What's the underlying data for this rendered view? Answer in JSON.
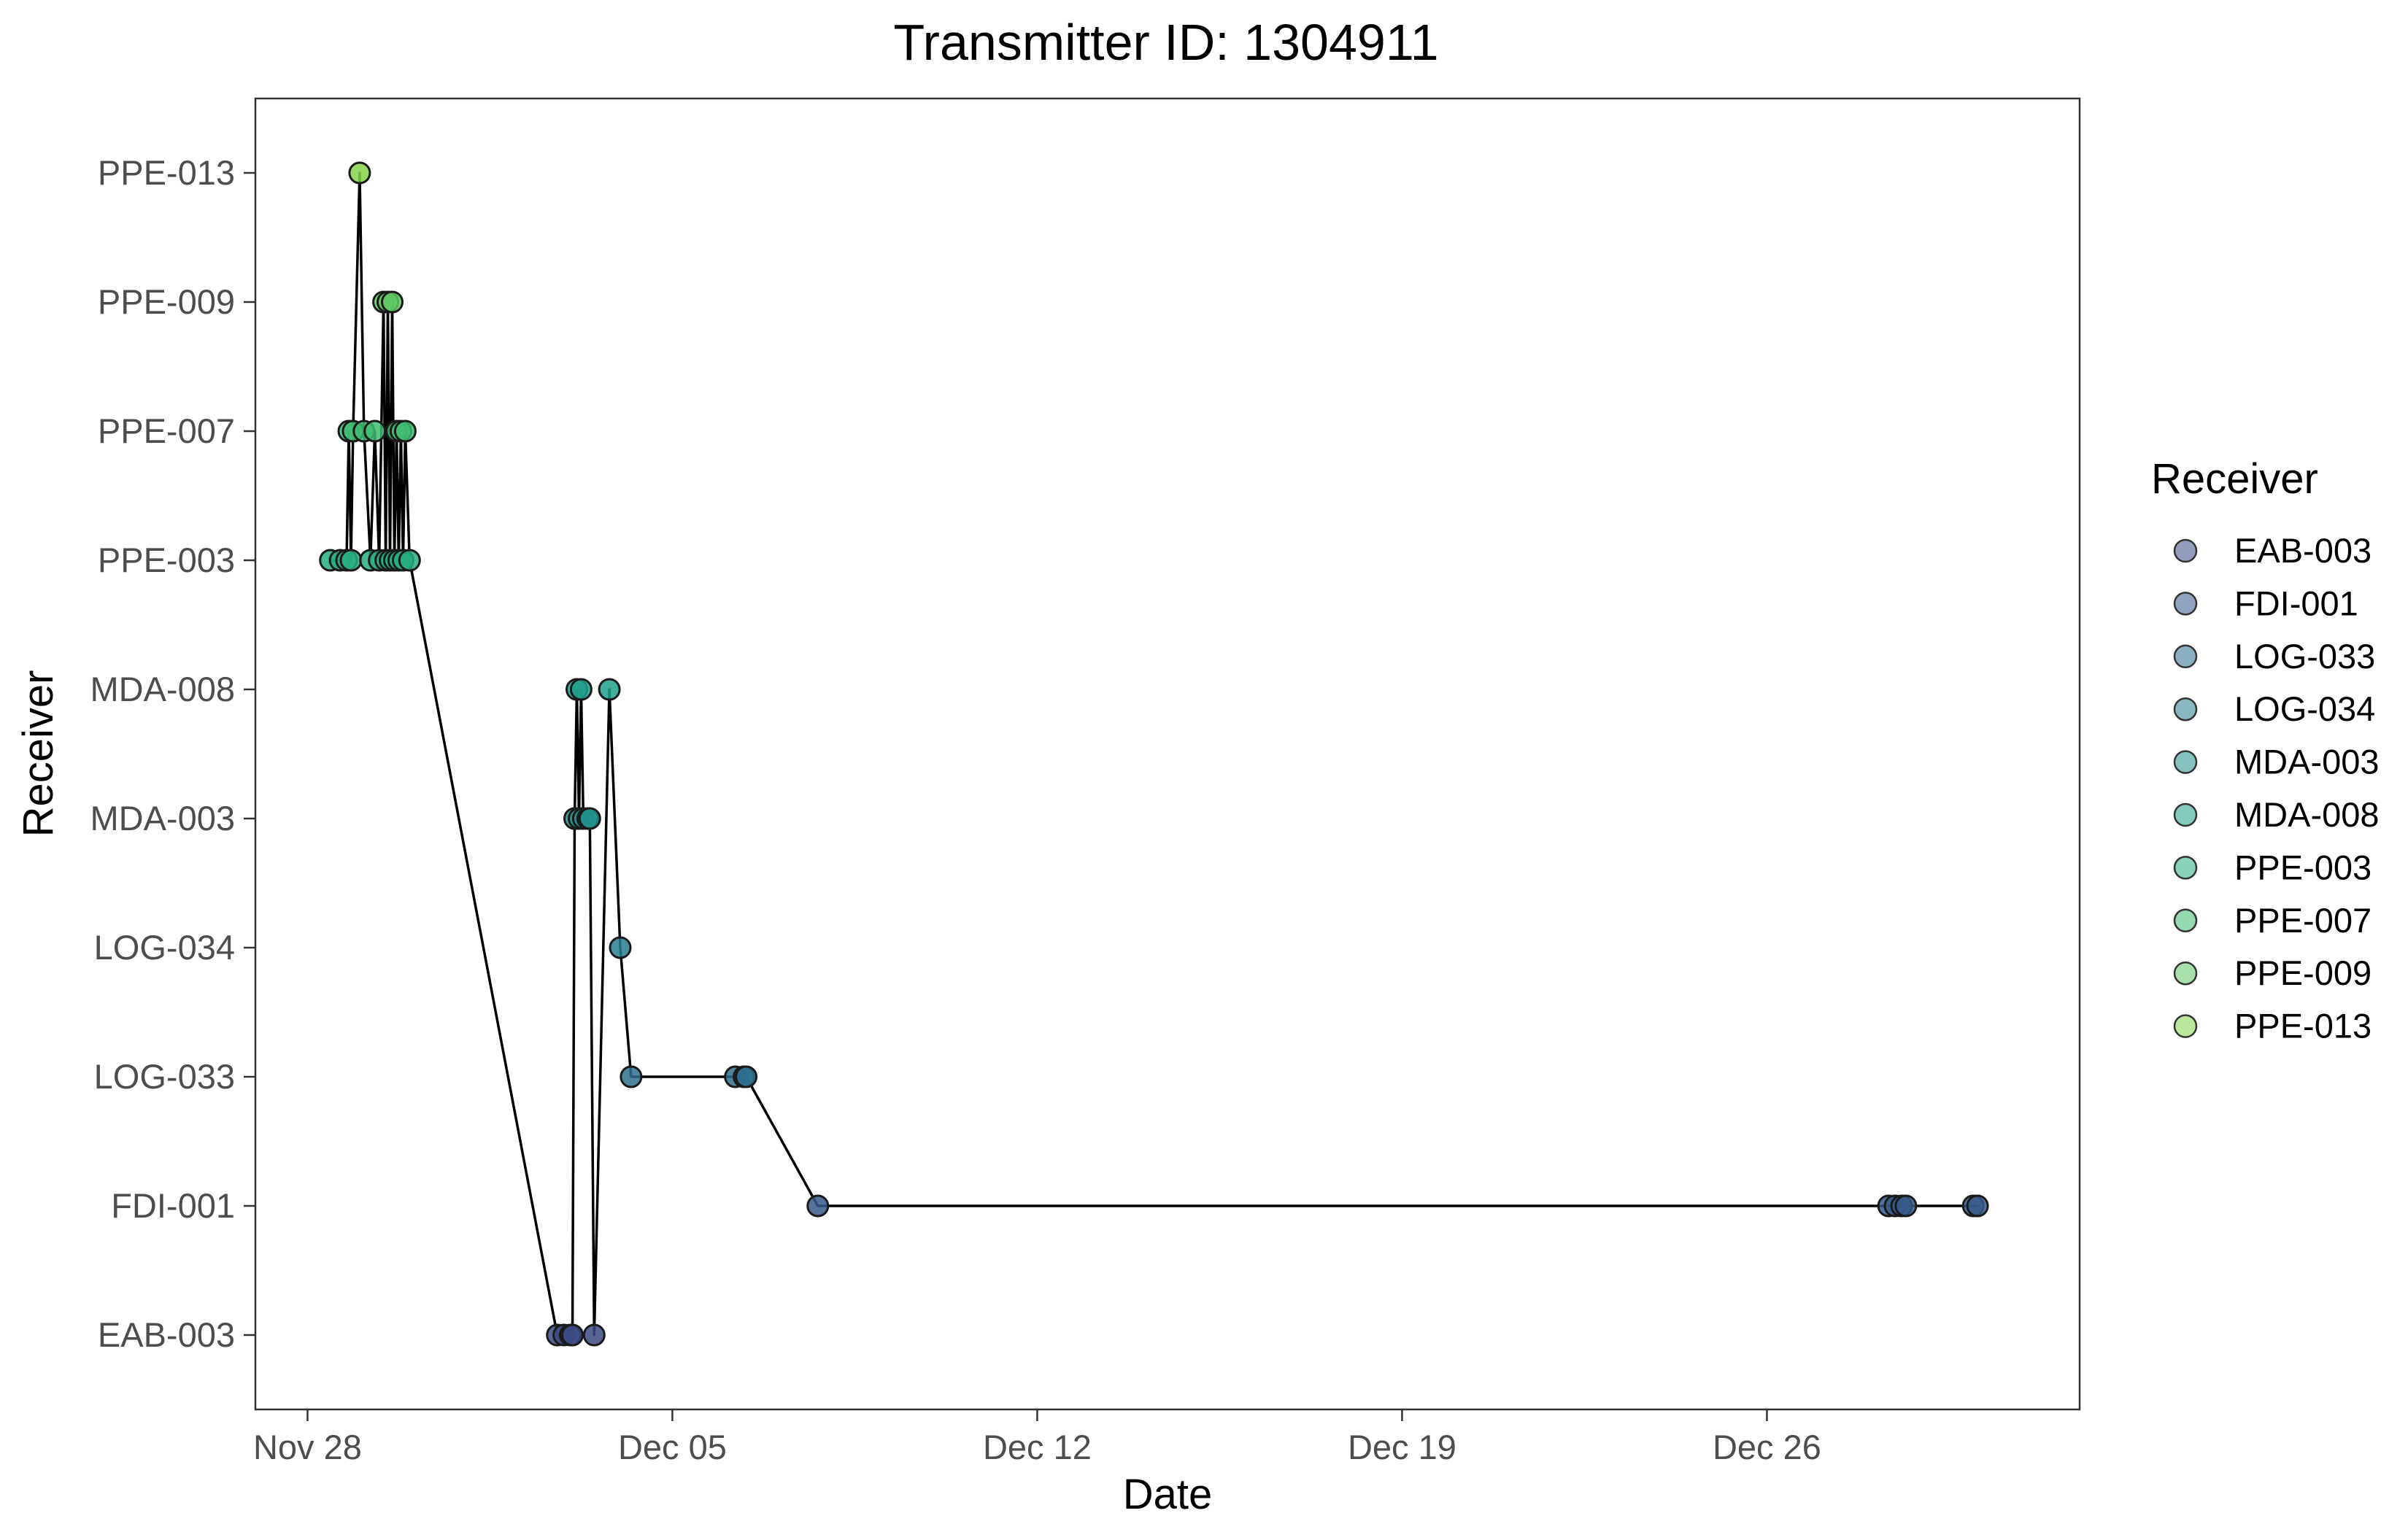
{
  "chart_data": {
    "type": "line",
    "title": "Transmitter ID: 1304911",
    "xlabel": "Date",
    "ylabel": "Receiver",
    "x_axis": {
      "scale": "date",
      "range": [
        "2024-11-27T00:00",
        "2025-01-01T00:00"
      ],
      "ticks": [
        {
          "date": "2024-11-28T00:00",
          "label": "Nov 28"
        },
        {
          "date": "2024-12-05T00:00",
          "label": "Dec 05"
        },
        {
          "date": "2024-12-12T00:00",
          "label": "Dec 12"
        },
        {
          "date": "2024-12-19T00:00",
          "label": "Dec 19"
        },
        {
          "date": "2024-12-26T00:00",
          "label": "Dec 26"
        }
      ]
    },
    "categories": [
      "EAB-003",
      "FDI-001",
      "LOG-033",
      "LOG-034",
      "MDA-003",
      "MDA-008",
      "PPE-003",
      "PPE-007",
      "PPE-009",
      "PPE-013"
    ],
    "legend": {
      "title": "Receiver",
      "placement": "right",
      "items": [
        {
          "label": "EAB-003",
          "color": "#3d4a85"
        },
        {
          "label": "FDI-001",
          "color": "#36598a"
        },
        {
          "label": "LOG-033",
          "color": "#2e6f8e"
        },
        {
          "label": "LOG-034",
          "color": "#277f8e"
        },
        {
          "label": "MDA-003",
          "color": "#21918c"
        },
        {
          "label": "MDA-008",
          "color": "#1fa088"
        },
        {
          "label": "PPE-003",
          "color": "#28ae80"
        },
        {
          "label": "PPE-007",
          "color": "#3fbc73"
        },
        {
          "label": "PPE-009",
          "color": "#5ec962"
        },
        {
          "label": "PPE-013",
          "color": "#84d44b"
        }
      ]
    },
    "points": [
      {
        "t": "2024-11-28T10:30",
        "receiver": "PPE-003"
      },
      {
        "t": "2024-11-28T15:00",
        "receiver": "PPE-003"
      },
      {
        "t": "2024-11-28T18:00",
        "receiver": "PPE-003"
      },
      {
        "t": "2024-11-28T19:00",
        "receiver": "PPE-007"
      },
      {
        "t": "2024-11-28T20:00",
        "receiver": "PPE-003"
      },
      {
        "t": "2024-11-28T21:00",
        "receiver": "PPE-007"
      },
      {
        "t": "2024-11-29T00:00",
        "receiver": "PPE-013"
      },
      {
        "t": "2024-11-29T02:00",
        "receiver": "PPE-007"
      },
      {
        "t": "2024-11-29T05:00",
        "receiver": "PPE-003"
      },
      {
        "t": "2024-11-29T07:00",
        "receiver": "PPE-007"
      },
      {
        "t": "2024-11-29T09:00",
        "receiver": "PPE-003"
      },
      {
        "t": "2024-11-29T11:00",
        "receiver": "PPE-009"
      },
      {
        "t": "2024-11-29T12:00",
        "receiver": "PPE-003"
      },
      {
        "t": "2024-11-29T13:00",
        "receiver": "PPE-009"
      },
      {
        "t": "2024-11-29T14:00",
        "receiver": "PPE-003"
      },
      {
        "t": "2024-11-29T15:00",
        "receiver": "PPE-009"
      },
      {
        "t": "2024-11-29T16:00",
        "receiver": "PPE-003"
      },
      {
        "t": "2024-11-29T17:00",
        "receiver": "PPE-007"
      },
      {
        "t": "2024-11-29T18:00",
        "receiver": "PPE-003"
      },
      {
        "t": "2024-11-29T19:00",
        "receiver": "PPE-007"
      },
      {
        "t": "2024-11-29T20:00",
        "receiver": "PPE-003"
      },
      {
        "t": "2024-11-29T21:00",
        "receiver": "PPE-007"
      },
      {
        "t": "2024-11-29T23:00",
        "receiver": "PPE-003"
      },
      {
        "t": "2024-12-02T19:00",
        "receiver": "EAB-003"
      },
      {
        "t": "2024-12-02T22:00",
        "receiver": "EAB-003"
      },
      {
        "t": "2024-12-03T01:00",
        "receiver": "EAB-003"
      },
      {
        "t": "2024-12-03T02:00",
        "receiver": "EAB-003"
      },
      {
        "t": "2024-12-03T03:00",
        "receiver": "MDA-003"
      },
      {
        "t": "2024-12-03T04:00",
        "receiver": "MDA-008"
      },
      {
        "t": "2024-12-03T05:00",
        "receiver": "MDA-003"
      },
      {
        "t": "2024-12-03T06:00",
        "receiver": "MDA-008"
      },
      {
        "t": "2024-12-03T07:00",
        "receiver": "MDA-003"
      },
      {
        "t": "2024-12-03T09:00",
        "receiver": "MDA-003"
      },
      {
        "t": "2024-12-03T10:00",
        "receiver": "MDA-003"
      },
      {
        "t": "2024-12-03T12:00",
        "receiver": "EAB-003"
      },
      {
        "t": "2024-12-03T19:00",
        "receiver": "MDA-008"
      },
      {
        "t": "2024-12-04T00:00",
        "receiver": "LOG-034"
      },
      {
        "t": "2024-12-04T05:00",
        "receiver": "LOG-033"
      },
      {
        "t": "2024-12-06T05:00",
        "receiver": "LOG-033"
      },
      {
        "t": "2024-12-06T09:00",
        "receiver": "LOG-033"
      },
      {
        "t": "2024-12-06T10:00",
        "receiver": "LOG-033"
      },
      {
        "t": "2024-12-07T19:00",
        "receiver": "FDI-001"
      },
      {
        "t": "2024-12-28T08:00",
        "receiver": "FDI-001"
      },
      {
        "t": "2024-12-28T11:00",
        "receiver": "FDI-001"
      },
      {
        "t": "2024-12-28T14:00",
        "receiver": "FDI-001"
      },
      {
        "t": "2024-12-28T16:00",
        "receiver": "FDI-001"
      },
      {
        "t": "2024-12-29T23:00",
        "receiver": "FDI-001"
      },
      {
        "t": "2024-12-30T01:00",
        "receiver": "FDI-001"
      }
    ]
  }
}
